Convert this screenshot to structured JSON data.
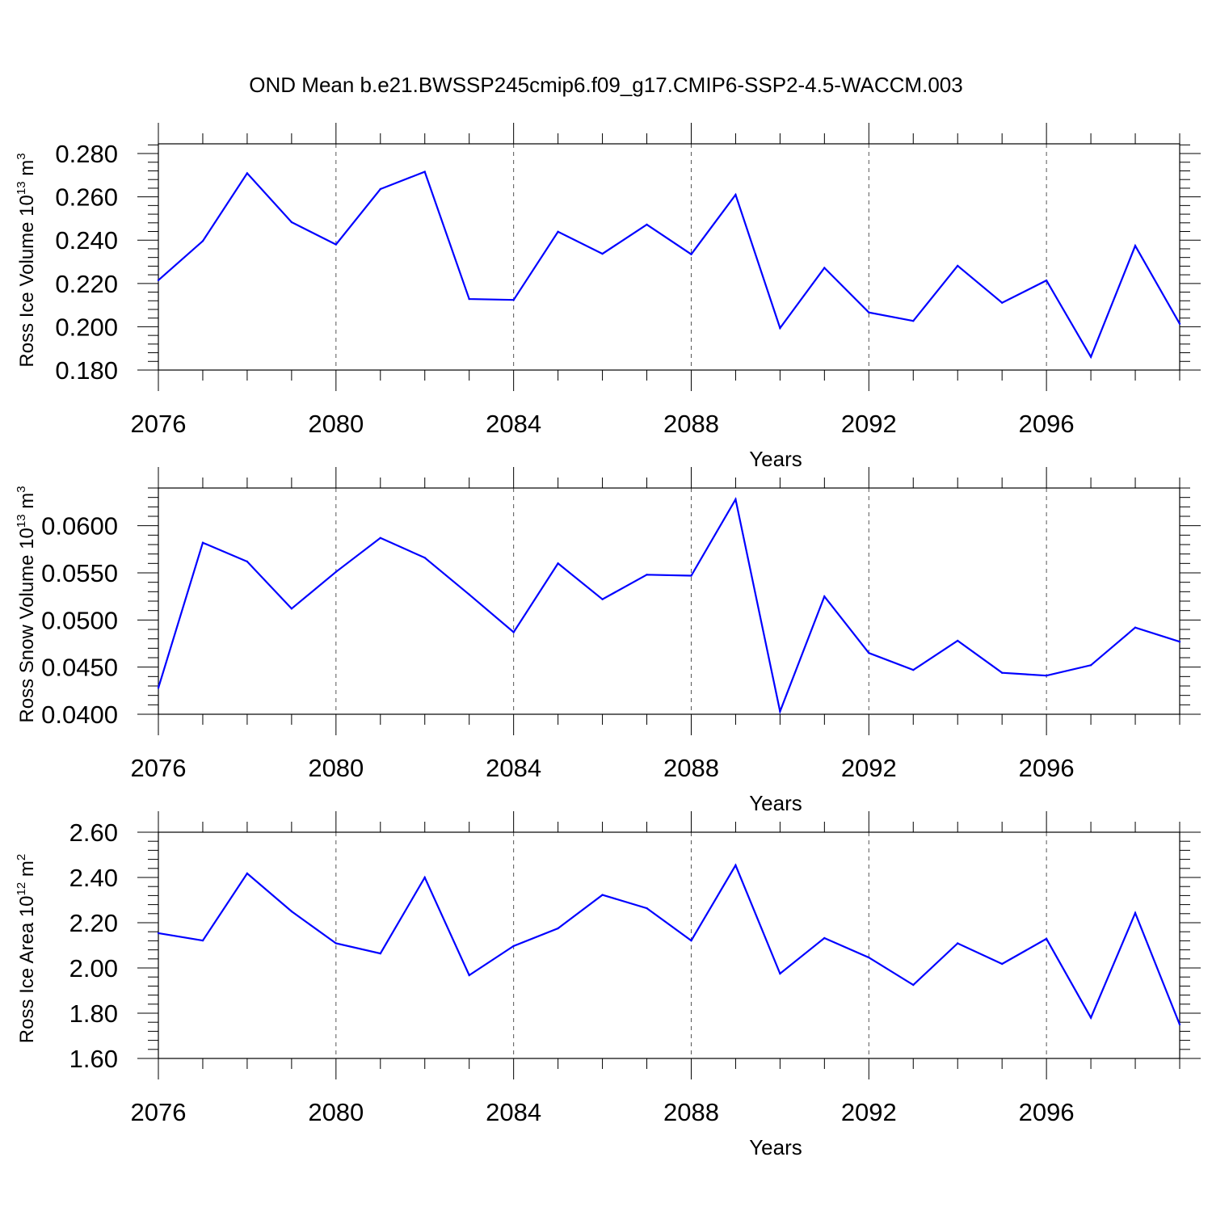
{
  "title": "OND Mean b.e21.BWSSP245cmip6.f09_g17.CMIP6-SSP2-4.5-WACCM.003",
  "colors": {
    "line": "#0000ff",
    "axis": "#000000",
    "grid": "#555555"
  },
  "chart_data": [
    {
      "type": "line",
      "name": "ross-ice-volume",
      "ylabel": {
        "text": "Ross Ice Volume 10",
        "sup": "13",
        "unit": " m",
        "unit_sup": "3"
      },
      "xlabel": "Years",
      "xlim": [
        2076,
        2099
      ],
      "ylim": [
        0.18,
        0.2845
      ],
      "xticks": [
        2076,
        2080,
        2084,
        2088,
        2092,
        2096
      ],
      "xtick_labels": [
        "2076",
        "2080",
        "2084",
        "2088",
        "2092",
        "2096"
      ],
      "yticks": [
        0.18,
        0.2,
        0.22,
        0.24,
        0.26,
        0.28
      ],
      "ytick_labels": [
        "0.180",
        "0.200",
        "0.220",
        "0.240",
        "0.260",
        "0.280"
      ],
      "grid": "vertical dashed at major x ticks",
      "x": [
        2076,
        2077,
        2078,
        2079,
        2080,
        2081,
        2082,
        2083,
        2084,
        2085,
        2086,
        2087,
        2088,
        2089,
        2090,
        2091,
        2092,
        2093,
        2094,
        2095,
        2096,
        2097,
        2098,
        2099
      ],
      "values": [
        0.2215,
        0.2396,
        0.2709,
        0.2483,
        0.238,
        0.2636,
        0.2716,
        0.2128,
        0.2124,
        0.2439,
        0.2337,
        0.2472,
        0.2335,
        0.261,
        0.1994,
        0.2272,
        0.2066,
        0.2027,
        0.2282,
        0.2111,
        0.2214,
        0.1861,
        0.2374,
        0.2014
      ]
    },
    {
      "type": "line",
      "name": "ross-snow-volume",
      "ylabel": {
        "text": "Ross Snow Volume 10",
        "sup": "13",
        "unit": " m",
        "unit_sup": "3"
      },
      "xlabel": "Years",
      "xlim": [
        2076,
        2099
      ],
      "ylim": [
        0.04,
        0.064
      ],
      "xticks": [
        2076,
        2080,
        2084,
        2088,
        2092,
        2096
      ],
      "xtick_labels": [
        "2076",
        "2080",
        "2084",
        "2088",
        "2092",
        "2096"
      ],
      "yticks": [
        0.04,
        0.045,
        0.05,
        0.055,
        0.06
      ],
      "ytick_labels": [
        "0.0400",
        "0.0450",
        "0.0500",
        "0.0550",
        "0.0600"
      ],
      "grid": "vertical dashed at major x ticks",
      "x": [
        2076,
        2077,
        2078,
        2079,
        2080,
        2081,
        2082,
        2083,
        2084,
        2085,
        2086,
        2087,
        2088,
        2089,
        2090,
        2091,
        2092,
        2093,
        2094,
        2095,
        2096,
        2097,
        2098,
        2099
      ],
      "values": [
        0.0428,
        0.0582,
        0.0562,
        0.0512,
        0.0551,
        0.0587,
        0.0566,
        0.0527,
        0.0487,
        0.056,
        0.0522,
        0.0548,
        0.0547,
        0.0628,
        0.0403,
        0.0525,
        0.0465,
        0.0447,
        0.0478,
        0.0444,
        0.0441,
        0.0452,
        0.0492,
        0.0477
      ]
    },
    {
      "type": "line",
      "name": "ross-ice-area",
      "ylabel": {
        "text": "Ross Ice Area 10",
        "sup": "12",
        "unit": " m",
        "unit_sup": "2"
      },
      "xlabel": "Years",
      "xlim": [
        2076,
        2099
      ],
      "ylim": [
        1.6,
        2.6
      ],
      "xticks": [
        2076,
        2080,
        2084,
        2088,
        2092,
        2096
      ],
      "xtick_labels": [
        "2076",
        "2080",
        "2084",
        "2088",
        "2092",
        "2096"
      ],
      "yticks": [
        1.6,
        1.8,
        2.0,
        2.2,
        2.4,
        2.6
      ],
      "ytick_labels": [
        "1.60",
        "1.80",
        "2.00",
        "2.20",
        "2.40",
        "2.60"
      ],
      "grid": "vertical dashed at major x ticks",
      "x": [
        2076,
        2077,
        2078,
        2079,
        2080,
        2081,
        2082,
        2083,
        2084,
        2085,
        2086,
        2087,
        2088,
        2089,
        2090,
        2091,
        2092,
        2093,
        2094,
        2095,
        2096,
        2097,
        2098,
        2099
      ],
      "values": [
        2.154,
        2.121,
        2.418,
        2.25,
        2.109,
        2.064,
        2.4,
        1.968,
        2.097,
        2.175,
        2.323,
        2.264,
        2.121,
        2.454,
        1.975,
        2.132,
        2.046,
        1.925,
        2.109,
        2.018,
        2.129,
        1.78,
        2.243,
        1.75
      ]
    }
  ]
}
